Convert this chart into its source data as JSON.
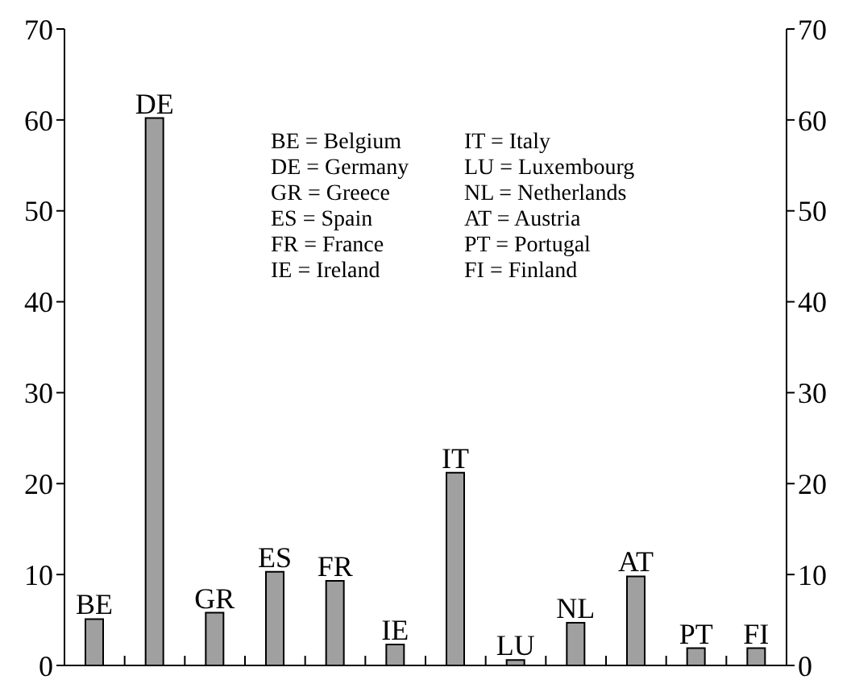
{
  "chart_data": {
    "type": "bar",
    "categories": [
      "BE",
      "DE",
      "GR",
      "ES",
      "FR",
      "IE",
      "IT",
      "LU",
      "NL",
      "AT",
      "PT",
      "FI"
    ],
    "values": [
      5.1,
      60.2,
      5.8,
      10.3,
      9.3,
      2.3,
      21.2,
      0.6,
      4.7,
      9.8,
      1.9,
      1.9
    ],
    "color": "#a0a0a0",
    "ylim": [
      0,
      70
    ],
    "yticks": [
      0,
      10,
      20,
      30,
      40,
      50,
      60,
      70
    ],
    "y2lim": [
      0,
      70
    ],
    "y2ticks": [
      0,
      10,
      20,
      30,
      40,
      50,
      60,
      70
    ],
    "tick_labels": "y",
    "grid": false,
    "annotations": [
      "BE = Belgium",
      "DE = Germany",
      "GR = Greece",
      "ES = Spain",
      "FR = France",
      "IE = Ireland",
      "IT = Italy",
      "LU = Luxembourg",
      "NL = Netherlands",
      "AT = Austria",
      "PT = Portugal",
      "FI = Finland"
    ]
  }
}
